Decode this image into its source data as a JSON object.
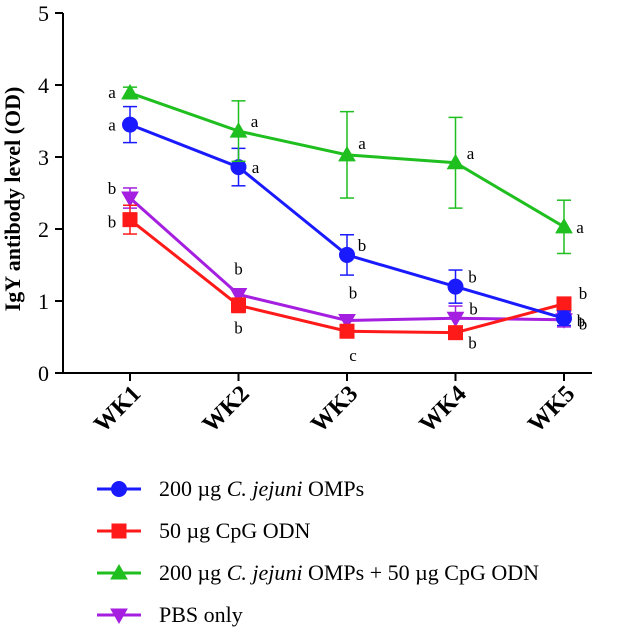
{
  "chart_data": {
    "type": "line",
    "title": "",
    "xlabel": "",
    "ylabel": "IgY antibody level (OD)",
    "ylim": [
      0,
      5
    ],
    "yticks": [
      0,
      1,
      2,
      3,
      4,
      5
    ],
    "categories": [
      "WK1",
      "WK2",
      "WK3",
      "WK4",
      "WK5"
    ],
    "series": [
      {
        "name": "200 µg C. jejuni OMPs",
        "legend_parts": [
          "200 µg ",
          "C. jejuni",
          " OMPs"
        ],
        "marker": "circle",
        "color": "#1a1aff",
        "values": [
          3.45,
          2.86,
          1.64,
          1.2,
          0.76
        ],
        "errors": [
          0.25,
          0.26,
          0.28,
          0.23,
          0.1
        ],
        "sig_labels": [
          "a",
          "a",
          "b",
          "b",
          "b"
        ]
      },
      {
        "name": "50 µg CpG ODN",
        "legend_parts": [
          "50 µg CpG ODN"
        ],
        "marker": "square",
        "color": "#ff1a1a",
        "values": [
          2.13,
          0.94,
          0.58,
          0.56,
          0.96
        ],
        "errors": [
          0.2,
          0.1,
          0.07,
          0.08,
          0.06
        ],
        "sig_labels": [
          "b",
          "b",
          "c",
          "b",
          "b"
        ]
      },
      {
        "name": "200 µg C. jejuni OMPs + 50 µg CpG ODN",
        "legend_parts": [
          "200 µg ",
          "C. jejuni",
          " OMPs + 50 µg CpG ODN"
        ],
        "marker": "triangle-up",
        "color": "#1fbf1f",
        "values": [
          3.89,
          3.36,
          3.03,
          2.92,
          2.03
        ],
        "errors": [
          0.08,
          0.42,
          0.6,
          0.63,
          0.37
        ],
        "sig_labels": [
          "a",
          "a",
          "a",
          "a",
          "a"
        ]
      },
      {
        "name": "PBS only",
        "legend_parts": [
          "PBS only"
        ],
        "marker": "triangle-down",
        "color": "#a41fdf",
        "values": [
          2.43,
          1.09,
          0.73,
          0.76,
          0.74
        ],
        "errors": [
          0.14,
          0.06,
          0.06,
          0.17,
          0.1
        ],
        "sig_labels": [
          "b",
          "b",
          "b",
          "b",
          "b"
        ]
      }
    ]
  }
}
